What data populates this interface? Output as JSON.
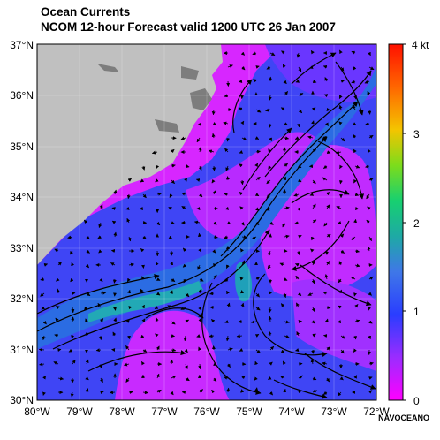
{
  "title": "Ocean Currents",
  "subtitle": "NCOM 12-hour Forecast valid 1200 UTC  26 Jan 2007",
  "credit": "NAVOCEANO",
  "lat_labels": [
    "37°N",
    "36°N",
    "35°N",
    "34°N",
    "33°N",
    "32°N",
    "31°N",
    "30°N"
  ],
  "lon_labels": [
    "80°W",
    "79°W",
    "78°W",
    "77°W",
    "76°W",
    "75°W",
    "74°W",
    "73°W",
    "72°W"
  ],
  "colorbar": {
    "unit_label": "4 kt",
    "ticks": [
      "3",
      "2",
      "1",
      "0"
    ],
    "min": 0,
    "max": 4,
    "colors": [
      "#ff00ff",
      "#9b2cff",
      "#2a3dff",
      "#3f77e8",
      "#1ea9a5",
      "#17d070",
      "#7ddc1b",
      "#f4c400",
      "#ff6600",
      "#ff1000"
    ]
  },
  "map_colors": {
    "land": "#c0c0c0",
    "low_speed": "#d726ff",
    "mid_speed": "#3a52ff",
    "high_speed": "#2b9fcf",
    "arrows": "#000000"
  }
}
